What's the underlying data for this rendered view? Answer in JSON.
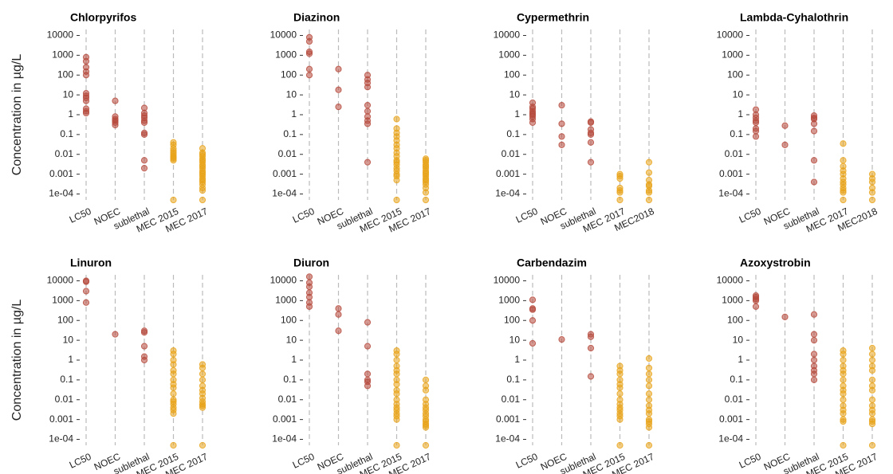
{
  "chart_data": [
    {
      "type": "strip",
      "title": "Chlorpyrifos",
      "ylabel": "Concentration in  µg/L",
      "log_y": true,
      "categories": [
        "LC50",
        "NOEC",
        "sublethal",
        "MEC 2015",
        "MEC 2017"
      ],
      "colors": [
        "#b5473a",
        "#b5473a",
        "#b5473a",
        "#e8a317",
        "#e8a317"
      ],
      "values": [
        [
          800,
          500,
          250,
          150,
          100,
          12,
          9,
          7,
          5,
          2,
          1.5,
          1.2
        ],
        [
          5,
          0.8,
          0.6,
          0.5,
          0.4,
          0.3
        ],
        [
          2.2,
          1.2,
          0.9,
          0.7,
          0.5,
          0.4,
          0.12,
          0.1,
          0.005,
          0.002
        ],
        [
          0.04,
          0.03,
          0.02,
          0.015,
          0.012,
          0.01,
          0.008,
          0.007,
          0.006,
          0.005,
          5e-05
        ],
        [
          0.02,
          0.012,
          0.01,
          0.008,
          0.006,
          0.005,
          0.004,
          0.003,
          0.0025,
          0.002,
          0.0015,
          0.0012,
          0.001,
          0.0008,
          0.0006,
          0.0005,
          0.0004,
          0.0003,
          0.0002,
          0.00015,
          5e-05
        ]
      ],
      "ylim": [
        5e-05,
        20000
      ],
      "yticks": [
        {
          "value": 0.0001,
          "label": "1e-04"
        },
        0.001,
        0.01,
        0.1,
        1,
        10,
        100,
        1000,
        10000
      ]
    },
    {
      "type": "strip",
      "title": "Diazinon",
      "log_y": true,
      "categories": [
        "LC50",
        "NOEC",
        "sublethal",
        "MEC 2015",
        "MEC 2017"
      ],
      "colors": [
        "#b5473a",
        "#b5473a",
        "#b5473a",
        "#e8a317",
        "#e8a317"
      ],
      "values": [
        [
          8000,
          5000,
          1500,
          1200,
          200,
          100
        ],
        [
          200,
          18,
          2.5
        ],
        [
          100,
          60,
          40,
          25,
          3,
          1.5,
          0.8,
          0.5,
          0.35,
          0.004
        ],
        [
          0.6,
          0.2,
          0.12,
          0.08,
          0.05,
          0.03,
          0.02,
          0.012,
          0.008,
          0.005,
          0.004,
          0.003,
          0.002,
          0.0015,
          0.001,
          0.0008,
          0.0005,
          5e-05
        ],
        [
          0.006,
          0.005,
          0.004,
          0.003,
          0.0025,
          0.002,
          0.0015,
          0.0012,
          0.001,
          0.0008,
          0.0006,
          0.0005,
          0.0004,
          0.0003,
          0.0002,
          0.00012,
          5e-05
        ]
      ],
      "ylim": [
        5e-05,
        20000
      ],
      "yticks": [
        {
          "value": 0.0001,
          "label": "1e-04"
        },
        0.001,
        0.01,
        0.1,
        1,
        10,
        100,
        1000,
        10000
      ]
    },
    {
      "type": "strip",
      "title": "Cypermethrin",
      "log_y": true,
      "categories": [
        "LC50",
        "NOEC",
        "sublethal",
        "MEC 2017",
        "MEC2018"
      ],
      "colors": [
        "#b5473a",
        "#b5473a",
        "#b5473a",
        "#e8a317",
        "#e8a317"
      ],
      "values": [
        [
          4,
          2.5,
          2,
          1.5,
          1.2,
          1,
          0.8,
          0.6,
          0.4
        ],
        [
          3,
          0.35,
          0.08,
          0.03
        ],
        [
          0.45,
          0.4,
          0.18,
          0.12,
          0.1,
          0.04,
          0.004
        ],
        [
          0.001,
          0.0008,
          0.0006,
          0.0002,
          0.00015,
          0.00012,
          5e-05
        ],
        [
          0.004,
          0.0012,
          0.0005,
          0.0003,
          0.00025,
          0.00015,
          0.00012,
          5e-05
        ]
      ],
      "ylim": [
        5e-05,
        20000
      ],
      "yticks": [
        {
          "value": 0.0001,
          "label": "1e-04"
        },
        0.001,
        0.01,
        0.1,
        1,
        10,
        100,
        1000,
        10000
      ]
    },
    {
      "type": "strip",
      "title": "Lambda-Cyhalothrin",
      "log_y": true,
      "categories": [
        "LC50",
        "NOEC",
        "sublethal",
        "MEC 2017",
        "MEC2018"
      ],
      "colors": [
        "#b5473a",
        "#b5473a",
        "#b5473a",
        "#e8a317",
        "#e8a317"
      ],
      "values": [
        [
          1.8,
          1,
          0.7,
          0.5,
          0.4,
          0.2,
          0.15,
          0.08
        ],
        [
          0.28,
          0.03
        ],
        [
          0.9,
          0.7,
          0.6,
          0.35,
          0.15,
          0.005,
          0.0004
        ],
        [
          0.035,
          0.005,
          0.0025,
          0.0015,
          0.001,
          0.0006,
          0.0004,
          0.0003,
          0.0002,
          0.00015,
          0.00012,
          5e-05
        ],
        [
          0.001,
          0.0006,
          0.0004,
          0.0002,
          0.00012,
          5e-05
        ]
      ],
      "ylim": [
        5e-05,
        20000
      ],
      "yticks": [
        {
          "value": 0.0001,
          "label": "1e-04"
        },
        0.001,
        0.01,
        0.1,
        1,
        10,
        100,
        1000,
        10000
      ]
    },
    {
      "type": "strip",
      "title": "Linuron",
      "ylabel": "Concentration in  µg/L",
      "log_y": true,
      "categories": [
        "LC50",
        "NOEC",
        "sublethal",
        "MEC 2015",
        "MEC 2017"
      ],
      "colors": [
        "#b5473a",
        "#b5473a",
        "#b5473a",
        "#e8a317",
        "#e8a317"
      ],
      "values": [
        [
          10000,
          9000,
          3000,
          800
        ],
        [
          20
        ],
        [
          30,
          25,
          5,
          1.5,
          1
        ],
        [
          3,
          2,
          1,
          0.6,
          0.3,
          0.2,
          0.1,
          0.06,
          0.04,
          0.02,
          0.01,
          0.008,
          0.006,
          0.004,
          0.003,
          0.002,
          5e-05
        ],
        [
          0.6,
          0.4,
          0.2,
          0.1,
          0.05,
          0.03,
          0.02,
          0.012,
          0.008,
          0.006,
          0.005,
          0.004,
          5e-05
        ]
      ],
      "ylim": [
        5e-05,
        20000
      ],
      "yticks": [
        {
          "value": 0.0001,
          "label": "1e-04"
        },
        0.001,
        0.01,
        0.1,
        1,
        10,
        100,
        1000,
        10000
      ]
    },
    {
      "type": "strip",
      "title": "Diuron",
      "log_y": true,
      "categories": [
        "LC50",
        "NOEC",
        "sublethal",
        "MEC 2015",
        "MEC 2017"
      ],
      "colors": [
        "#b5473a",
        "#b5473a",
        "#b5473a",
        "#e8a317",
        "#e8a317"
      ],
      "values": [
        [
          16000,
          8000,
          5000,
          2500,
          1500,
          800,
          500
        ],
        [
          400,
          200,
          30
        ],
        [
          80,
          5,
          0.2,
          0.1,
          0.08,
          0.05
        ],
        [
          3,
          2,
          1,
          0.5,
          0.3,
          0.2,
          0.1,
          0.06,
          0.03,
          0.02,
          0.01,
          0.006,
          0.004,
          0.003,
          0.002,
          0.0015,
          0.001,
          5e-05
        ],
        [
          0.1,
          0.05,
          0.03,
          0.01,
          0.006,
          0.004,
          0.003,
          0.002,
          0.0015,
          0.001,
          0.0008,
          0.0006,
          0.0005,
          0.0004,
          5e-05
        ]
      ],
      "ylim": [
        5e-05,
        20000
      ],
      "yticks": [
        {
          "value": 0.0001,
          "label": "1e-04"
        },
        0.001,
        0.01,
        0.1,
        1,
        10,
        100,
        1000,
        10000
      ]
    },
    {
      "type": "strip",
      "title": "Carbendazim",
      "log_y": true,
      "categories": [
        "LC50",
        "NOEC",
        "sublethal",
        "MEC 2015",
        "MEC 2017"
      ],
      "colors": [
        "#b5473a",
        "#b5473a",
        "#b5473a",
        "#e8a317",
        "#e8a317"
      ],
      "values": [
        [
          1100,
          400,
          350,
          100,
          7
        ],
        [
          11
        ],
        [
          20,
          15,
          4,
          0.15
        ],
        [
          0.5,
          0.3,
          0.2,
          0.1,
          0.06,
          0.04,
          0.02,
          0.01,
          0.006,
          0.004,
          0.003,
          0.002,
          0.0015,
          0.001,
          5e-05
        ],
        [
          1.2,
          0.4,
          0.2,
          0.1,
          0.05,
          0.02,
          0.01,
          0.005,
          0.003,
          0.002,
          0.001,
          0.0008,
          0.0006,
          0.0004,
          5e-05
        ]
      ],
      "ylim": [
        5e-05,
        20000
      ],
      "yticks": [
        {
          "value": 0.0001,
          "label": "1e-04"
        },
        0.001,
        0.01,
        0.1,
        1,
        10,
        100,
        1000,
        10000
      ]
    },
    {
      "type": "strip",
      "title": "Azoxystrobin",
      "log_y": true,
      "categories": [
        "LC50",
        "NOEC",
        "sublethal",
        "MEC 2015",
        "MEC 2017"
      ],
      "colors": [
        "#b5473a",
        "#b5473a",
        "#b5473a",
        "#e8a317",
        "#e8a317"
      ],
      "values": [
        [
          1800,
          1500,
          1200,
          1000,
          500
        ],
        [
          150
        ],
        [
          200,
          20,
          10,
          2,
          1,
          0.5,
          0.3,
          0.2,
          0.1
        ],
        [
          3,
          2,
          1,
          0.5,
          0.3,
          0.2,
          0.1,
          0.05,
          0.03,
          0.02,
          0.01,
          0.005,
          0.003,
          0.002,
          0.001,
          0.0008,
          5e-05
        ],
        [
          4,
          2,
          1,
          0.5,
          0.3,
          0.1,
          0.05,
          0.03,
          0.01,
          0.005,
          0.003,
          0.002,
          0.001,
          0.0008,
          0.0006,
          5e-05
        ]
      ],
      "ylim": [
        5e-05,
        20000
      ],
      "yticks": [
        {
          "value": 0.0001,
          "label": "1e-04"
        },
        0.001,
        0.01,
        0.1,
        1,
        10,
        100,
        1000,
        10000
      ]
    }
  ]
}
